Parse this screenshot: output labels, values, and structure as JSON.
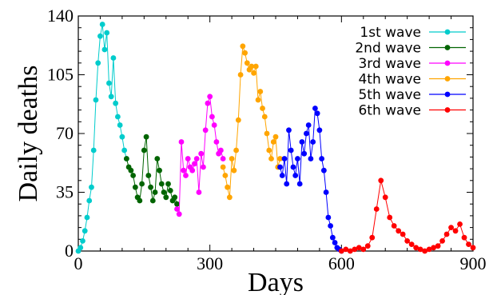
{
  "chart_data": {
    "type": "line",
    "xlabel": "Days",
    "ylabel": "Daily deaths",
    "xlim": [
      0,
      900
    ],
    "ylim": [
      0,
      140
    ],
    "xticks": [
      0,
      300,
      600,
      900
    ],
    "yticks": [
      0,
      35,
      70,
      105,
      140
    ],
    "grid": false,
    "legend_position": "top-right",
    "series": [
      {
        "name": "1st wave",
        "color": "#00cccc",
        "x": [
          0,
          5,
          10,
          15,
          20,
          25,
          30,
          35,
          40,
          45,
          50,
          55,
          60,
          65,
          70,
          75,
          80,
          85,
          90,
          95,
          100,
          105,
          110
        ],
        "y": [
          0,
          2,
          6,
          12,
          20,
          30,
          38,
          60,
          90,
          112,
          128,
          135,
          120,
          130,
          100,
          92,
          115,
          88,
          80,
          75,
          68,
          60,
          55
        ]
      },
      {
        "name": "2nd wave",
        "color": "#006400",
        "x": [
          110,
          115,
          120,
          125,
          130,
          135,
          140,
          145,
          150,
          155,
          160,
          165,
          170,
          175,
          180,
          185,
          190,
          195,
          200,
          205,
          210,
          215,
          220,
          225
        ],
        "y": [
          55,
          50,
          48,
          45,
          38,
          32,
          30,
          40,
          60,
          68,
          45,
          38,
          30,
          35,
          55,
          48,
          40,
          35,
          32,
          40,
          36,
          30,
          32,
          28
        ]
      },
      {
        "name": "3rd wave",
        "color": "#ff00ff",
        "x": [
          225,
          230,
          235,
          240,
          245,
          250,
          255,
          260,
          265,
          270,
          275,
          280,
          285,
          290,
          295,
          300,
          305,
          310,
          315,
          320,
          325,
          330
        ],
        "y": [
          25,
          22,
          65,
          48,
          45,
          55,
          50,
          48,
          52,
          55,
          35,
          58,
          50,
          72,
          88,
          92,
          80,
          75,
          65,
          58,
          60,
          55
        ]
      },
      {
        "name": "4th wave",
        "color": "#ffa500",
        "x": [
          330,
          335,
          340,
          345,
          350,
          355,
          360,
          365,
          370,
          375,
          380,
          385,
          390,
          395,
          400,
          405,
          410,
          415,
          420,
          425,
          430,
          435,
          440,
          445,
          450,
          455,
          460
        ],
        "y": [
          50,
          45,
          38,
          32,
          55,
          48,
          60,
          78,
          105,
          122,
          118,
          112,
          108,
          110,
          106,
          110,
          90,
          95,
          85,
          80,
          70,
          60,
          55,
          65,
          68,
          50,
          55
        ]
      },
      {
        "name": "5th wave",
        "color": "#0000ff",
        "x": [
          460,
          465,
          470,
          475,
          480,
          485,
          490,
          495,
          500,
          505,
          510,
          515,
          520,
          525,
          530,
          535,
          540,
          545,
          550,
          555,
          560,
          565,
          570,
          575,
          580,
          585,
          590,
          595,
          600
        ],
        "y": [
          50,
          45,
          55,
          40,
          72,
          60,
          50,
          45,
          55,
          40,
          65,
          58,
          70,
          75,
          55,
          65,
          85,
          82,
          72,
          55,
          48,
          35,
          20,
          15,
          8,
          5,
          2,
          1,
          0
        ]
      },
      {
        "name": "6th wave",
        "color": "#ff0000",
        "x": [
          600,
          610,
          620,
          630,
          640,
          650,
          660,
          670,
          680,
          690,
          700,
          710,
          720,
          730,
          740,
          750,
          760,
          770,
          780,
          790,
          800,
          810,
          820,
          830,
          840,
          850,
          860,
          870,
          880,
          890,
          900
        ],
        "y": [
          0,
          1,
          0,
          1,
          2,
          1,
          3,
          8,
          25,
          42,
          32,
          20,
          15,
          12,
          10,
          6,
          4,
          2,
          1,
          0,
          1,
          2,
          3,
          6,
          10,
          14,
          12,
          16,
          8,
          4,
          2
        ]
      }
    ]
  }
}
